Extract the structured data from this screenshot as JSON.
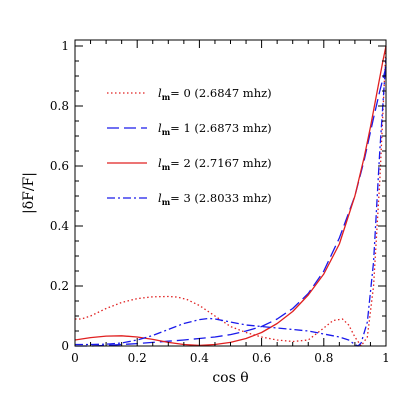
{
  "chart_data": {
    "type": "line",
    "xlabel": "cos θ",
    "ylabel": "|δF/F|",
    "xlim": [
      0,
      1
    ],
    "ylim": [
      0,
      1.02
    ],
    "x_ticks": [
      0,
      0.2,
      0.4,
      0.6,
      0.8,
      1
    ],
    "x_tick_labels": [
      "0",
      "0.2",
      "0.4",
      "0.6",
      "0.8",
      "1"
    ],
    "y_ticks": [
      0,
      0.2,
      0.4,
      0.6,
      0.8,
      1
    ],
    "y_tick_labels": [
      "0",
      "0.2",
      "0.4",
      "0.6",
      "0.8",
      "1"
    ],
    "legend_position": "upper-left",
    "series": [
      {
        "name": "l_m = 0 (2.6847 mhz)",
        "legend_prefix": "l",
        "legend_sub": "m",
        "legend_rest": "= 0 (2.6847 mhz)",
        "color": "#e02020",
        "style": "dotted",
        "x": [
          0,
          0.02,
          0.05,
          0.1,
          0.15,
          0.2,
          0.25,
          0.3,
          0.33,
          0.36,
          0.4,
          0.45,
          0.5,
          0.55,
          0.6,
          0.65,
          0.7,
          0.75,
          0.8,
          0.83,
          0.86,
          0.88,
          0.9,
          0.92,
          0.94,
          0.96,
          0.98,
          1.0
        ],
        "y": [
          0.09,
          0.09,
          0.1,
          0.125,
          0.145,
          0.158,
          0.164,
          0.165,
          0.163,
          0.155,
          0.135,
          0.1,
          0.065,
          0.045,
          0.03,
          0.02,
          0.015,
          0.02,
          0.06,
          0.085,
          0.09,
          0.07,
          0.03,
          0.0,
          0.03,
          0.2,
          0.55,
          1.0
        ]
      },
      {
        "name": "l_m = 1 (2.6873 mhz)",
        "legend_prefix": "l",
        "legend_sub": "m",
        "legend_rest": "= 1 (2.6873 mhz)",
        "color": "#1a1aeb",
        "style": "long-dashed",
        "x": [
          0,
          0.05,
          0.1,
          0.15,
          0.2,
          0.25,
          0.3,
          0.35,
          0.4,
          0.45,
          0.5,
          0.55,
          0.6,
          0.65,
          0.7,
          0.75,
          0.8,
          0.85,
          0.9,
          0.93,
          0.96,
          0.98,
          1.0
        ],
        "y": [
          0.0,
          0.0,
          0.002,
          0.005,
          0.008,
          0.012,
          0.016,
          0.02,
          0.025,
          0.03,
          0.038,
          0.05,
          0.065,
          0.09,
          0.125,
          0.175,
          0.25,
          0.36,
          0.5,
          0.62,
          0.76,
          0.85,
          0.93
        ]
      },
      {
        "name": "l_m = 2 (2.7167 mhz)",
        "legend_prefix": "l",
        "legend_sub": "m",
        "legend_rest": "= 2 (2.7167 mhz)",
        "color": "#e02020",
        "style": "solid",
        "x": [
          0,
          0.05,
          0.1,
          0.15,
          0.2,
          0.25,
          0.3,
          0.35,
          0.4,
          0.45,
          0.5,
          0.55,
          0.6,
          0.65,
          0.7,
          0.75,
          0.8,
          0.85,
          0.9,
          0.93,
          0.95,
          0.97,
          0.99,
          1.0
        ],
        "y": [
          0.02,
          0.028,
          0.033,
          0.034,
          0.03,
          0.022,
          0.012,
          0.005,
          0.002,
          0.005,
          0.012,
          0.025,
          0.045,
          0.075,
          0.115,
          0.17,
          0.24,
          0.34,
          0.5,
          0.63,
          0.73,
          0.84,
          0.95,
          1.0
        ]
      },
      {
        "name": "l_m = 3 (2.8033 mhz)",
        "legend_prefix": "l",
        "legend_sub": "m",
        "legend_rest": "= 3 (2.8033 mhz)",
        "color": "#1a1aeb",
        "style": "dash-dot",
        "x": [
          0,
          0.05,
          0.1,
          0.15,
          0.2,
          0.25,
          0.3,
          0.35,
          0.4,
          0.43,
          0.45,
          0.5,
          0.55,
          0.6,
          0.65,
          0.7,
          0.75,
          0.8,
          0.85,
          0.88,
          0.9,
          0.91,
          0.92,
          0.94,
          0.96,
          0.98,
          1.0
        ],
        "y": [
          0.005,
          0.005,
          0.006,
          0.01,
          0.02,
          0.035,
          0.055,
          0.075,
          0.088,
          0.092,
          0.09,
          0.08,
          0.07,
          0.065,
          0.06,
          0.055,
          0.05,
          0.04,
          0.03,
          0.02,
          0.005,
          0.0,
          0.01,
          0.08,
          0.28,
          0.65,
          0.96
        ]
      }
    ]
  }
}
